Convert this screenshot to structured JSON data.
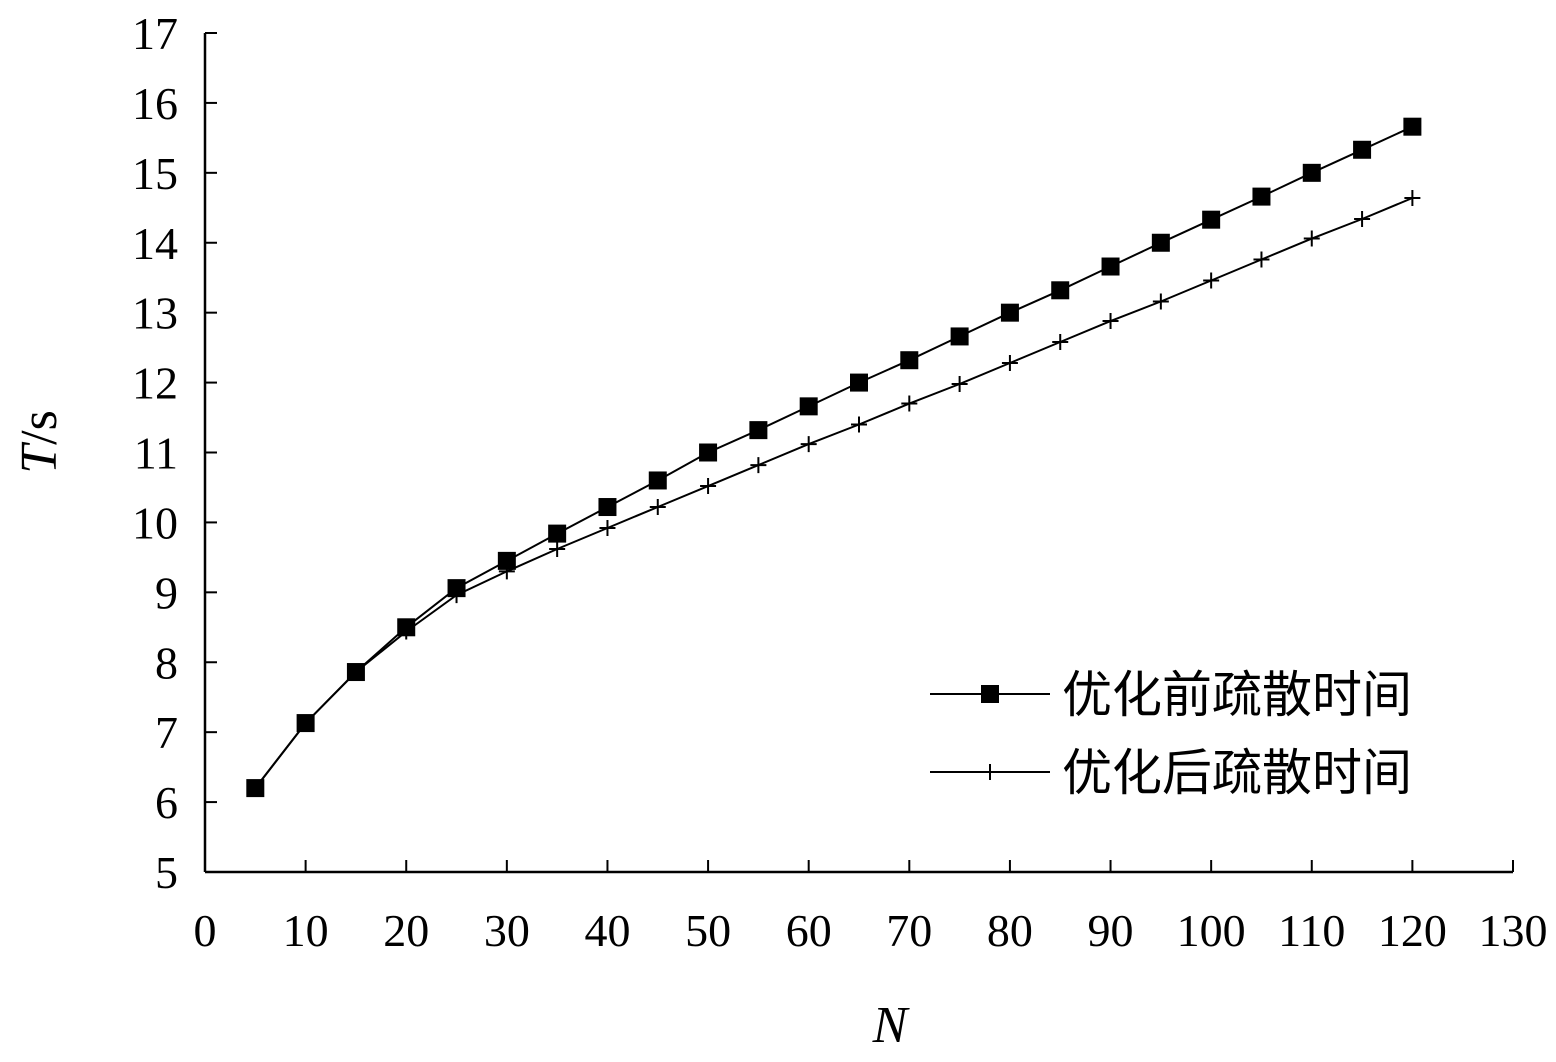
{
  "chart_data": {
    "type": "line",
    "title": "",
    "xlabel": "N",
    "ylabel_italic": "T",
    "ylabel_unit": "/s",
    "xlim": [
      0,
      130
    ],
    "ylim": [
      5,
      17
    ],
    "xticks": [
      0,
      10,
      20,
      30,
      40,
      50,
      60,
      70,
      80,
      90,
      100,
      110,
      120,
      130
    ],
    "yticks": [
      5,
      6,
      7,
      8,
      9,
      10,
      11,
      12,
      13,
      14,
      15,
      16,
      17
    ],
    "grid": false,
    "legend_position": "right",
    "x": [
      5,
      10,
      15,
      20,
      25,
      30,
      35,
      40,
      45,
      50,
      55,
      60,
      65,
      70,
      75,
      80,
      85,
      90,
      95,
      100,
      105,
      110,
      115,
      120
    ],
    "series": [
      {
        "name": "优化前疏散时间",
        "marker": "square",
        "color": "#000000",
        "values": [
          6.2,
          7.13,
          7.86,
          8.5,
          9.06,
          9.45,
          9.84,
          10.22,
          10.6,
          11.0,
          11.32,
          11.66,
          12.0,
          12.32,
          12.66,
          13.0,
          13.32,
          13.66,
          14.0,
          14.33,
          14.66,
          15.0,
          15.33,
          15.66
        ]
      },
      {
        "name": "优化后疏散时间",
        "marker": "plus",
        "color": "#000000",
        "values": [
          6.2,
          7.13,
          7.86,
          8.44,
          8.96,
          9.3,
          9.62,
          9.92,
          10.22,
          10.52,
          10.82,
          11.12,
          11.4,
          11.7,
          11.98,
          12.28,
          12.58,
          12.88,
          13.16,
          13.46,
          13.76,
          14.06,
          14.34,
          14.64
        ]
      }
    ]
  }
}
